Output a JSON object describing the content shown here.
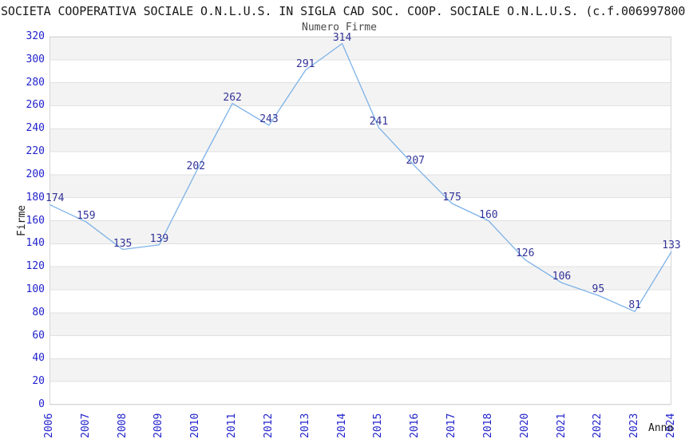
{
  "header": {
    "title": "SOCIETA COOPERATIVA SOCIALE O.N.L.U.S. IN SIGLA CAD SOC. COOP. SOCIALE O.N.L.U.S. (c.f.006997800"
  },
  "chart_data": {
    "type": "line",
    "title": "Numero Firme",
    "xlabel": "Anno",
    "ylabel": "Firme",
    "categories": [
      "2006",
      "2007",
      "2008",
      "2009",
      "2010",
      "2011",
      "2012",
      "2013",
      "2014",
      "2015",
      "2016",
      "2017",
      "2018",
      "2020",
      "2021",
      "2022",
      "2023",
      "2024"
    ],
    "values": [
      174,
      159,
      135,
      139,
      202,
      262,
      243,
      291,
      314,
      241,
      207,
      175,
      160,
      126,
      106,
      95,
      81,
      133
    ],
    "ylim": [
      0,
      320
    ],
    "ytick_step": 20,
    "grid": true,
    "legend": false,
    "band_pattern": "alternating stripes every 20 units, gray band at top (300-320)",
    "colors": {
      "line": "#7db2e8",
      "tick_label": "#2222cc",
      "data_label": "#333399",
      "band": "#f3f3f3",
      "grid_line": "#e0e0e0",
      "border": "#d6d6d6",
      "title": "#4a4a4a",
      "header_text": "#1a1a1a",
      "axis_title": "#1a1a1a",
      "background": "#ffffff"
    }
  }
}
